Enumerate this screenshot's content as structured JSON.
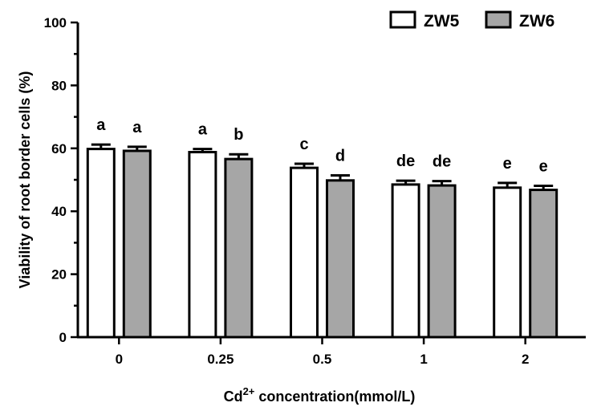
{
  "chart_data": {
    "type": "bar",
    "categories": [
      "0",
      "0.25",
      "0.5",
      "1",
      "2"
    ],
    "series": [
      {
        "name": "ZW5",
        "color": "#ffffff",
        "values": [
          59.8,
          58.8,
          53.8,
          48.5,
          47.5
        ],
        "errors": [
          1.4,
          1.0,
          1.3,
          1.2,
          1.5
        ],
        "significance": [
          "a",
          "a",
          "c",
          "de",
          "e"
        ]
      },
      {
        "name": "ZW6",
        "color": "#a6a6a6",
        "values": [
          59.2,
          56.6,
          49.8,
          48.2,
          46.8
        ],
        "errors": [
          1.3,
          1.5,
          1.6,
          1.4,
          1.3
        ],
        "significance": [
          "a",
          "b",
          "d",
          "de",
          "e"
        ]
      }
    ],
    "ylabel": "Viability of root border cells (%)",
    "xlabel": {
      "prefix": "Cd",
      "superscript": "2+",
      "suffix": " concentration(mmol/L)"
    },
    "ylim": [
      0,
      100
    ],
    "yticks": [
      0,
      20,
      40,
      60,
      80,
      100
    ],
    "legend_position": "top-right"
  }
}
